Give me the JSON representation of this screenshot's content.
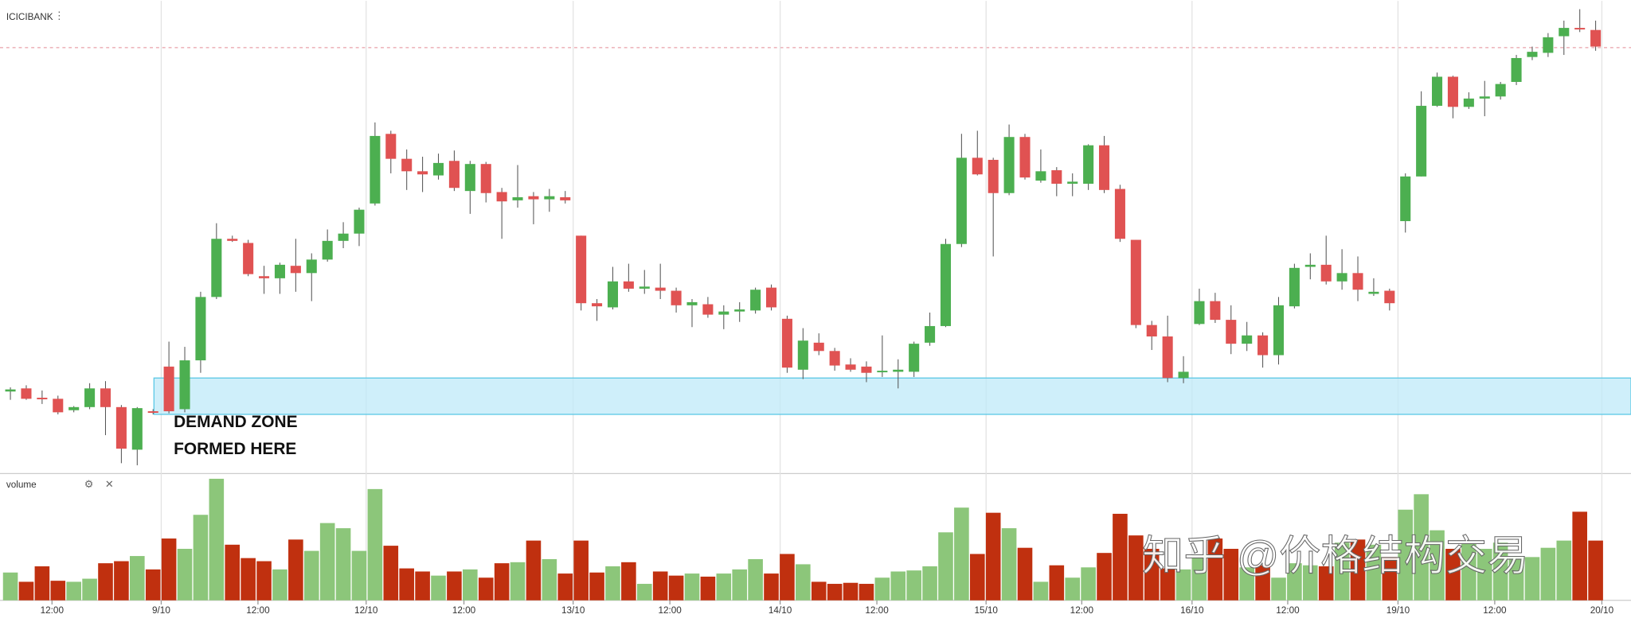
{
  "chart_data": {
    "type": "candlestick",
    "title": "ICICIBANK",
    "up_color": "#4caf50",
    "down_color": "#e05252",
    "ylim": [
      0,
      460
    ],
    "open": [
      84,
      87,
      78,
      77,
      66,
      69,
      87,
      69,
      28,
      65,
      108,
      67,
      114,
      175,
      231,
      227,
      195,
      193,
      205,
      198,
      211,
      229,
      236,
      265,
      332,
      308,
      296,
      292,
      306,
      277,
      303,
      276,
      268,
      272,
      269,
      271,
      234,
      169,
      165,
      190,
      183,
      184,
      181,
      167,
      168,
      158,
      161,
      162,
      184,
      154,
      105,
      131,
      123,
      110,
      108,
      103,
      103,
      103,
      131,
      147,
      226,
      309,
      307,
      275,
      329,
      287,
      297,
      284,
      284,
      321,
      279,
      230,
      148,
      137,
      97,
      149,
      171,
      153,
      130,
      138,
      119,
      166,
      204,
      206,
      190,
      198,
      178,
      181,
      248,
      291,
      359,
      387,
      358,
      366,
      368,
      382,
      406,
      410,
      426,
      434,
      432
    ],
    "high": [
      88,
      90,
      85,
      80,
      70,
      92,
      94,
      71,
      69,
      67,
      132,
      127,
      180,
      246,
      234,
      230,
      205,
      208,
      231,
      217,
      240,
      247,
      261,
      343,
      335,
      317,
      310,
      313,
      316,
      306,
      305,
      280,
      302,
      276,
      279,
      277,
      234,
      173,
      204,
      207,
      201,
      207,
      184,
      173,
      175,
      167,
      170,
      184,
      187,
      157,
      145,
      140,
      126,
      116,
      113,
      138,
      115,
      132,
      160,
      231,
      332,
      335,
      309,
      341,
      332,
      317,
      300,
      294,
      322,
      330,
      283,
      230,
      152,
      157,
      118,
      183,
      179,
      167,
      151,
      141,
      175,
      207,
      217,
      234,
      221,
      214,
      193,
      183,
      294,
      373,
      391,
      388,
      372,
      383,
      382,
      408,
      416,
      429,
      441,
      452,
      441
    ],
    "low": [
      76,
      76,
      72,
      62,
      64,
      67,
      42,
      15,
      13,
      62,
      63,
      64,
      102,
      173,
      228,
      195,
      178,
      178,
      180,
      171,
      209,
      222,
      224,
      263,
      294,
      278,
      276,
      288,
      277,
      255,
      266,
      231,
      261,
      245,
      257,
      265,
      162,
      152,
      163,
      180,
      178,
      173,
      160,
      146,
      155,
      144,
      151,
      159,
      162,
      102,
      96,
      119,
      104,
      103,
      93,
      98,
      87,
      98,
      128,
      146,
      223,
      292,
      214,
      273,
      288,
      285,
      272,
      272,
      278,
      275,
      228,
      145,
      124,
      93,
      92,
      148,
      150,
      120,
      123,
      107,
      110,
      164,
      192,
      187,
      182,
      171,
      176,
      162,
      237,
      291,
      358,
      347,
      356,
      349,
      365,
      379,
      403,
      406,
      408,
      430,
      412
    ],
    "close": [
      86,
      77,
      77,
      64,
      69,
      87,
      69,
      29,
      68,
      64,
      65,
      114,
      175,
      231,
      229,
      197,
      193,
      206,
      198,
      211,
      229,
      236,
      259,
      330,
      308,
      296,
      293,
      304,
      280,
      303,
      275,
      267,
      271,
      269,
      272,
      268,
      169,
      166,
      190,
      183,
      185,
      181,
      167,
      170,
      158,
      161,
      163,
      182,
      165,
      107,
      133,
      123,
      109,
      105,
      102,
      104,
      105,
      130,
      147,
      226,
      309,
      293,
      275,
      329,
      290,
      296,
      284,
      286,
      321,
      278,
      231,
      148,
      137,
      97,
      103,
      171,
      153,
      130,
      138,
      119,
      167,
      203,
      206,
      190,
      198,
      182,
      180,
      169,
      291,
      359,
      387,
      358,
      366,
      368,
      380,
      405,
      411,
      425,
      434,
      433,
      416
    ],
    "x_labels": [
      "12:00",
      "9/10",
      "12:00",
      "12/10",
      "12:00",
      "13/10",
      "12:00",
      "14/10",
      "12:00",
      "15/10",
      "12:00",
      "16/10",
      "12:00",
      "19/10",
      "12:00",
      "20/10"
    ],
    "annotation": [
      "DEMAND ZONE",
      "FORMED HERE"
    ],
    "watermark": "知乎 @价格结构交易",
    "volume": {
      "label": "volume",
      "up_color": "#8cc67a",
      "down_color": "#c0300f",
      "ylim": [
        0,
        120
      ],
      "values": [
        27,
        18,
        33,
        19,
        18,
        21,
        36,
        38,
        43,
        30,
        60,
        50,
        83,
        118,
        54,
        41,
        38,
        30,
        59,
        48,
        75,
        70,
        48,
        108,
        53,
        31,
        28,
        24,
        28,
        30,
        22,
        36,
        37,
        58,
        40,
        26,
        58,
        27,
        33,
        37,
        16,
        28,
        24,
        26,
        23,
        26,
        30,
        40,
        26,
        45,
        35,
        18,
        16,
        17,
        16,
        22,
        28,
        29,
        33,
        66,
        90,
        45,
        85,
        70,
        51,
        18,
        34,
        22,
        32,
        46,
        84,
        63,
        50,
        31,
        30,
        44,
        60,
        50,
        32,
        34,
        22,
        36,
        34,
        33,
        56,
        59,
        54,
        42,
        88,
        103,
        68,
        50,
        55,
        50,
        56,
        43,
        42,
        51,
        58,
        86,
        58
      ]
    }
  }
}
